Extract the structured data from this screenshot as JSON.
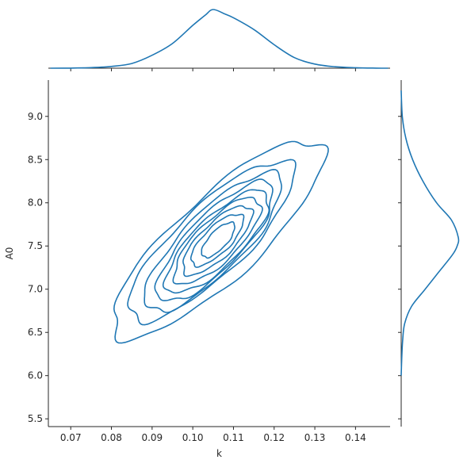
{
  "chart_data": {
    "type": "jointplot-kde",
    "xlabel": "k",
    "ylabel": "A0",
    "xlim": [
      0.0645,
      0.1485
    ],
    "ylim": [
      5.41,
      9.42
    ],
    "xticks": [
      "0.07",
      "0.08",
      "0.09",
      "0.10",
      "0.11",
      "0.12",
      "0.13",
      "0.14"
    ],
    "yticks": [
      "5.5",
      "6.0",
      "6.5",
      "7.0",
      "7.5",
      "8.0",
      "8.5",
      "9.0"
    ],
    "color": "#1f77b4",
    "grid": false,
    "center": {
      "k": 0.1045,
      "A0": 7.5
    },
    "contour_levels": [
      {
        "level": 1,
        "k_min": 0.081,
        "k_max": 0.131,
        "A0_min": 6.49,
        "A0_max": 8.67
      },
      {
        "level": 2,
        "k_min": 0.085,
        "k_max": 0.124,
        "A0_min": 6.68,
        "A0_max": 8.44
      },
      {
        "level": 3,
        "k_min": 0.089,
        "k_max": 0.121,
        "A0_min": 6.78,
        "A0_max": 8.31
      },
      {
        "level": 4,
        "k_min": 0.092,
        "k_max": 0.119,
        "A0_min": 6.89,
        "A0_max": 8.21
      },
      {
        "level": 5,
        "k_min": 0.094,
        "k_max": 0.118,
        "A0_min": 6.99,
        "A0_max": 8.11
      },
      {
        "level": 6,
        "k_min": 0.096,
        "k_max": 0.116,
        "A0_min": 7.09,
        "A0_max": 8.03
      },
      {
        "level": 7,
        "k_min": 0.098,
        "k_max": 0.114,
        "A0_min": 7.19,
        "A0_max": 7.94
      },
      {
        "level": 8,
        "k_min": 0.1,
        "k_max": 0.112,
        "A0_min": 7.29,
        "A0_max": 7.85
      },
      {
        "level": 9,
        "k_min": 0.1025,
        "k_max": 0.11,
        "A0_min": 7.38,
        "A0_max": 7.76
      }
    ],
    "marginal_k": {
      "x": [
        0.065,
        0.07,
        0.075,
        0.08,
        0.085,
        0.09,
        0.095,
        0.1,
        0.103,
        0.105,
        0.108,
        0.11,
        0.115,
        0.12,
        0.125,
        0.13,
        0.135,
        0.14,
        0.145,
        0.148
      ],
      "density": [
        0.0,
        0.002,
        0.01,
        0.03,
        0.08,
        0.22,
        0.42,
        0.73,
        0.9,
        1.0,
        0.92,
        0.86,
        0.66,
        0.4,
        0.18,
        0.07,
        0.025,
        0.008,
        0.002,
        0.0
      ]
    },
    "marginal_A0": {
      "y": [
        9.3,
        9.0,
        8.75,
        8.5,
        8.25,
        8.0,
        7.8,
        7.6,
        7.5,
        7.4,
        7.2,
        7.0,
        6.8,
        6.6,
        6.4,
        6.2,
        6.0
      ],
      "density": [
        0.0,
        0.02,
        0.08,
        0.2,
        0.38,
        0.62,
        0.88,
        1.0,
        0.98,
        0.9,
        0.66,
        0.42,
        0.18,
        0.06,
        0.025,
        0.01,
        0.0
      ]
    }
  }
}
